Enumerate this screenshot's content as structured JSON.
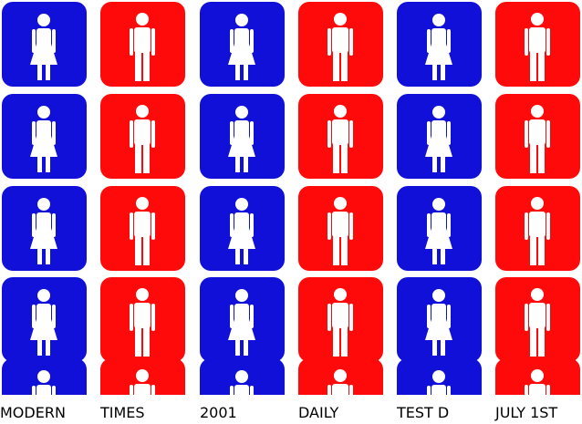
{
  "labels": [
    "MODERN",
    "TIMES",
    "2001",
    "DAILY",
    "TEST D",
    "JULY 1ST"
  ]
}
